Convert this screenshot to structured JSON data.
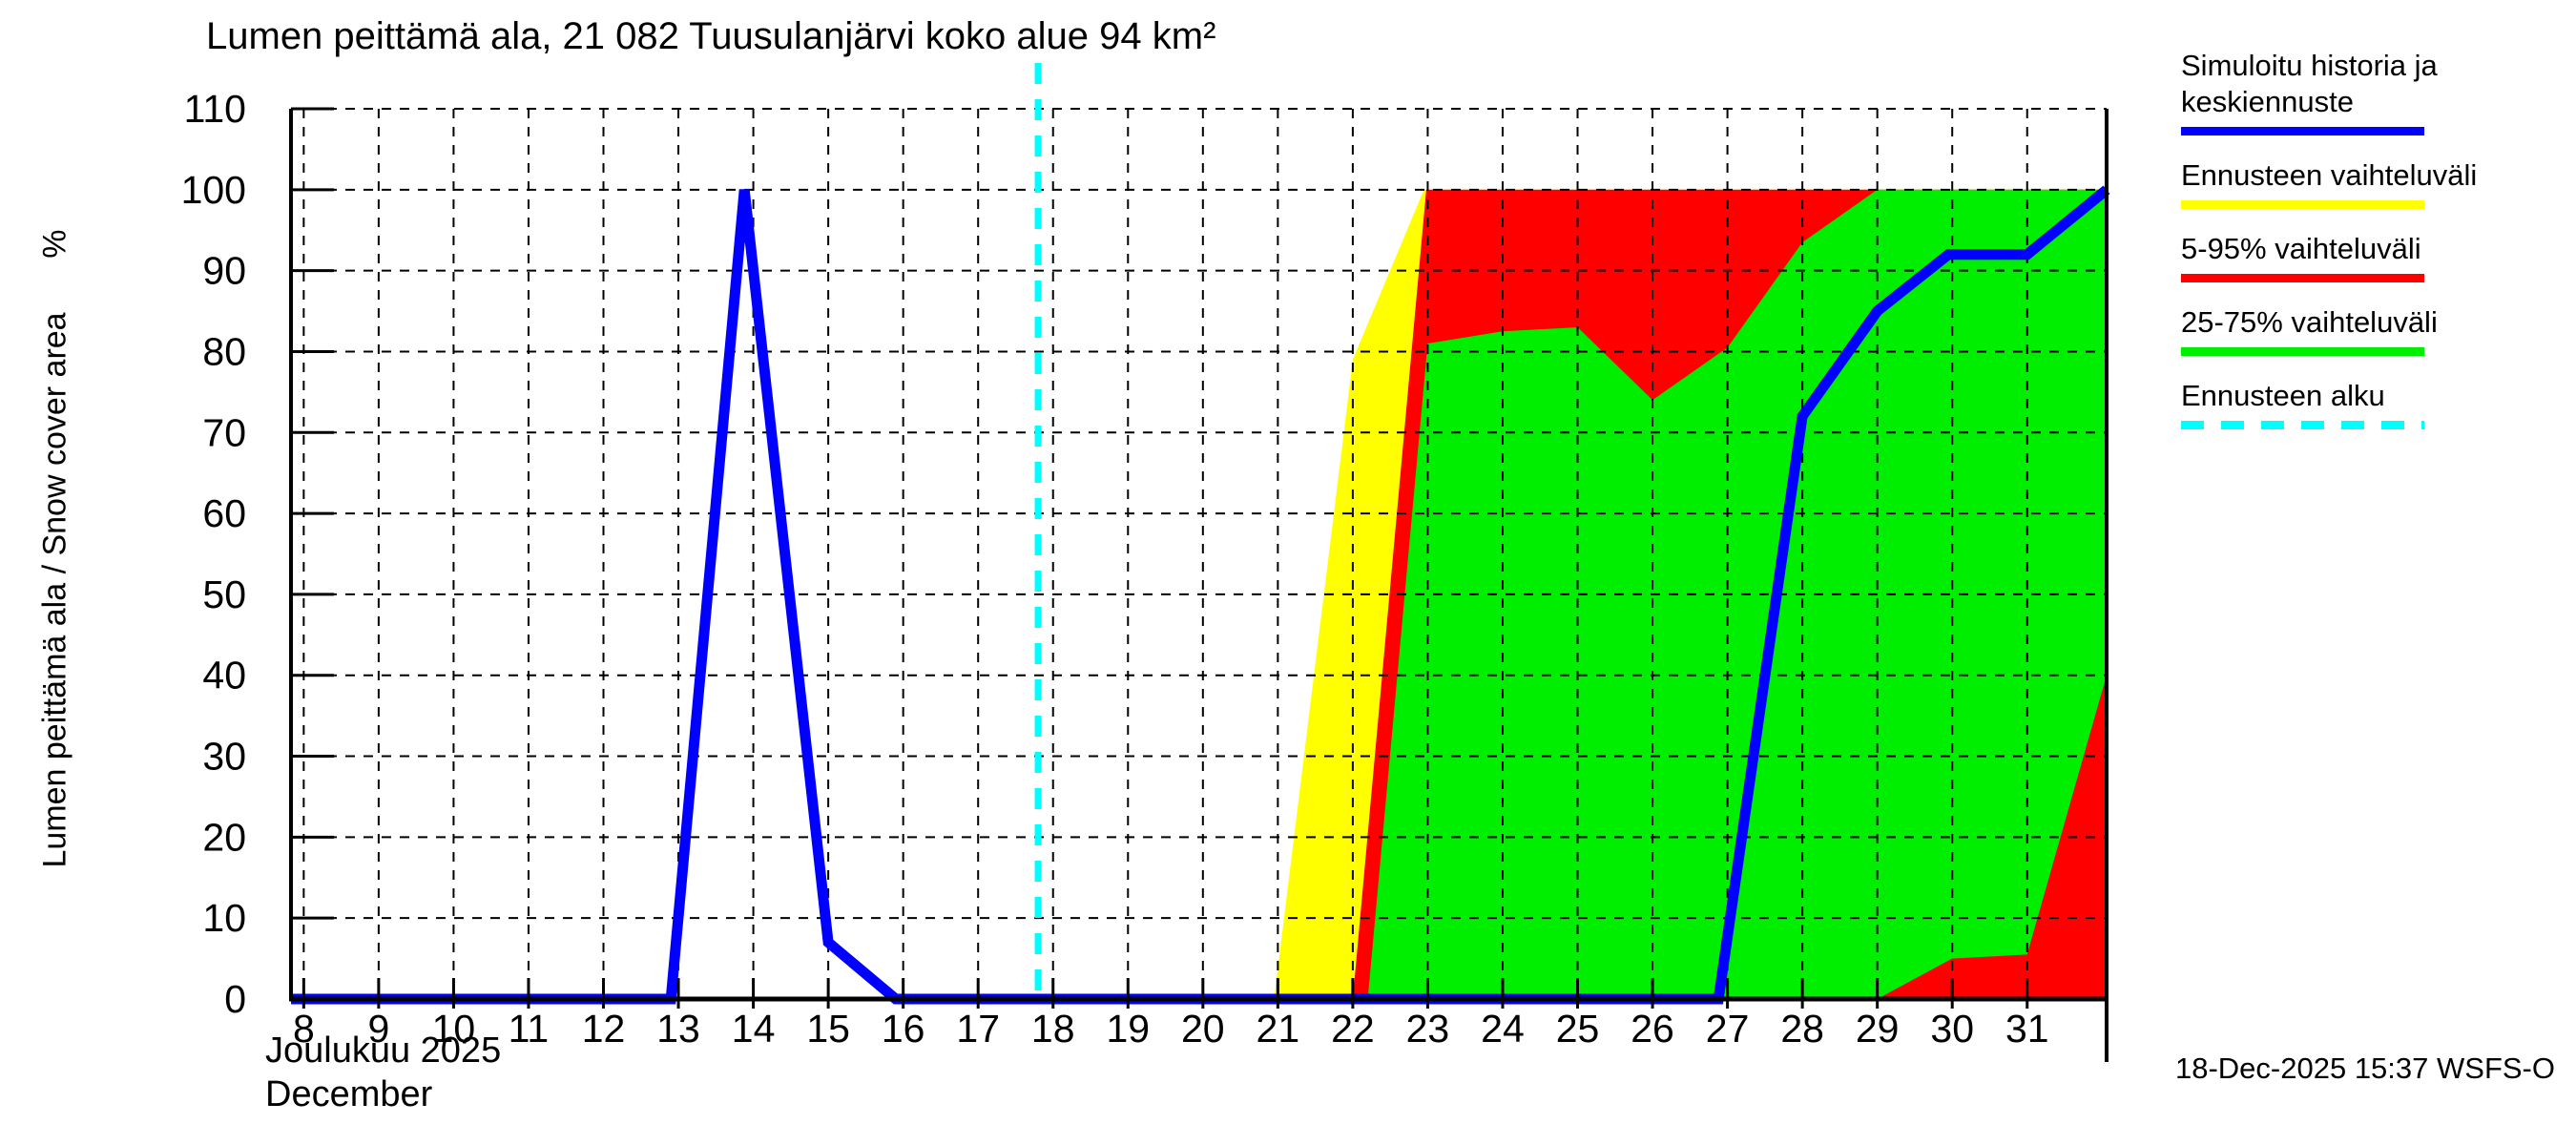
{
  "page": {
    "title": "Lumen peittämä ala, 21 082 Tuusulanjärvi koko alue 94 km²",
    "ylabel": "Lumen peittämä ala / Snow cover area      %",
    "xlabel_line1": "Joulukuu  2025",
    "xlabel_line2": "December",
    "stamp": "18-Dec-2025 15:37 WSFS-O"
  },
  "legend": {
    "items": [
      {
        "line1": "Simuloitu historia ja",
        "line2": "keskiennuste",
        "color": "#0000ff",
        "dashed": false
      },
      {
        "line1": "Ennusteen vaihteluväli",
        "line2": "",
        "color": "#ffff00",
        "dashed": false
      },
      {
        "line1": "5-95% vaihteluväli",
        "line2": "",
        "color": "#ff0000",
        "dashed": false
      },
      {
        "line1": "25-75% vaihteluväli",
        "line2": "",
        "color": "#00ee00",
        "dashed": false
      },
      {
        "line1": "Ennusteen alku",
        "line2": "",
        "color": "#00ffff",
        "dashed": true
      }
    ]
  },
  "chart_data": {
    "type": "area",
    "title": "Lumen peittämä ala, 21 082 Tuusulanjärvi koko alue 94 km²",
    "xlabel": "Joulukuu 2025 / December",
    "ylabel": "Lumen peittämä ala / Snow cover area %",
    "x_unit": "day of December 2025",
    "y_unit": "percent",
    "x_domain": [
      7.83,
      32.06
    ],
    "ylim": [
      0,
      110
    ],
    "x_ticks": [
      8,
      9,
      10,
      11,
      12,
      13,
      14,
      15,
      16,
      17,
      18,
      19,
      20,
      21,
      22,
      23,
      24,
      25,
      26,
      27,
      28,
      29,
      30,
      31
    ],
    "y_ticks": [
      0,
      10,
      20,
      30,
      40,
      50,
      60,
      70,
      80,
      90,
      100,
      110
    ],
    "grid": true,
    "forecast_start_day": 17.8,
    "colors": {
      "history": "#0000ff",
      "forecast_range": "#ffff00",
      "p5_95": "#ff0000",
      "p25_75": "#00ee00",
      "forecast_start": "#00ffff",
      "grid": "#000000"
    },
    "bands": [
      {
        "key": "yellow-band",
        "name": "Ennusteen vaihteluväli",
        "color": "#ffff00",
        "top": [
          [
            20.95,
            0
          ],
          [
            22.0,
            79
          ],
          [
            22.95,
            100
          ],
          [
            32.06,
            100
          ]
        ],
        "bottom": [
          [
            20.95,
            0
          ],
          [
            32.06,
            0
          ]
        ]
      },
      {
        "key": "red-band",
        "name": "5-95% vaihteluväli",
        "color": "#ff0000",
        "top": [
          [
            22.0,
            0
          ],
          [
            22.98,
            100
          ],
          [
            32.06,
            100
          ]
        ],
        "bottom": [
          [
            22.0,
            0
          ],
          [
            32.06,
            0
          ]
        ]
      },
      {
        "key": "green-band",
        "name": "25-75% vaihteluväli",
        "color": "#00ee00",
        "top": [
          [
            22.2,
            0
          ],
          [
            23,
            81
          ],
          [
            24,
            82.5
          ],
          [
            25,
            83
          ],
          [
            26,
            74
          ],
          [
            27,
            80.5
          ],
          [
            28,
            93.5
          ],
          [
            29,
            100
          ],
          [
            32.06,
            100
          ]
        ],
        "bottom": [
          [
            22.2,
            0
          ],
          [
            29,
            0
          ],
          [
            30,
            5
          ],
          [
            31,
            5.5
          ],
          [
            32.06,
            40
          ]
        ]
      }
    ],
    "series": [
      {
        "key": "history-line",
        "name": "Simuloitu historia ja keskiennuste",
        "color": "#0000ff",
        "points": [
          [
            7.83,
            0
          ],
          [
            12.9,
            0
          ],
          [
            13.88,
            100
          ],
          [
            15.0,
            7
          ],
          [
            15.9,
            0
          ],
          [
            26.88,
            0
          ],
          [
            28,
            72
          ],
          [
            29,
            85
          ],
          [
            29.95,
            92
          ],
          [
            31,
            92
          ],
          [
            32.06,
            100
          ]
        ]
      }
    ]
  }
}
